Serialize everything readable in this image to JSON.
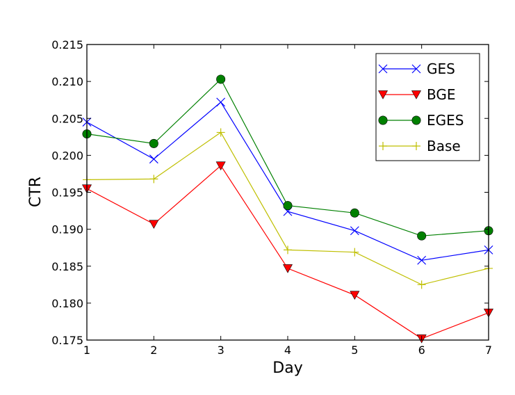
{
  "chart_data": {
    "type": "line",
    "title": "",
    "xlabel": "Day",
    "ylabel": "CTR",
    "x": [
      1,
      2,
      3,
      4,
      5,
      6,
      7
    ],
    "xlim": [
      1,
      7
    ],
    "ylim": [
      0.175,
      0.215
    ],
    "x_ticks": [
      "1",
      "2",
      "3",
      "4",
      "5",
      "6",
      "7"
    ],
    "y_ticks": [
      "0.175",
      "0.180",
      "0.185",
      "0.190",
      "0.195",
      "0.200",
      "0.205",
      "0.210",
      "0.215"
    ],
    "grid": false,
    "legend_position": "top-right",
    "series": [
      {
        "name": "GES",
        "color": "#0000ff",
        "marker": "x",
        "values": [
          0.2045,
          0.1995,
          0.2072,
          0.1924,
          0.1898,
          0.1858,
          0.1872
        ]
      },
      {
        "name": "BGE",
        "color": "#ff0000",
        "marker": "triangle-down",
        "values": [
          0.1955,
          0.1907,
          0.1986,
          0.1847,
          0.1811,
          0.1752,
          0.1787
        ]
      },
      {
        "name": "EGES",
        "color": "#008000",
        "marker": "circle",
        "values": [
          0.2029,
          0.2016,
          0.2103,
          0.1932,
          0.1922,
          0.1891,
          0.1898
        ]
      },
      {
        "name": "Base",
        "color": "#bfbf00",
        "marker": "plus",
        "values": [
          0.1967,
          0.1968,
          0.2031,
          0.1872,
          0.1869,
          0.1825,
          0.1847
        ]
      }
    ]
  }
}
